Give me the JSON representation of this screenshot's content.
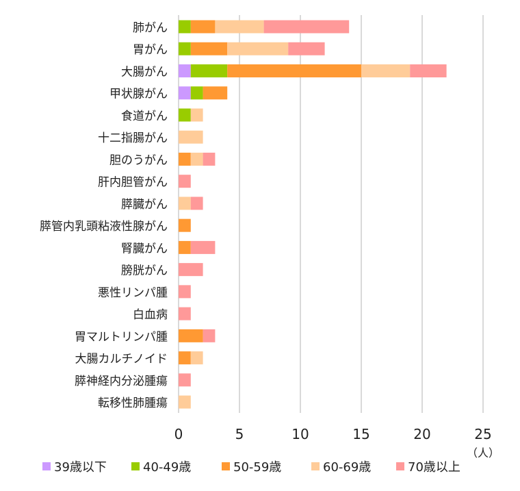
{
  "chart_data": {
    "type": "bar",
    "orientation": "horizontal",
    "stacked": true,
    "title": "",
    "xlabel": "",
    "unit_label": "（人）",
    "xlim": [
      0,
      25
    ],
    "xticks": [
      0,
      5,
      10,
      15,
      20,
      25
    ],
    "grid": true,
    "legend_position": "bottom",
    "categories": [
      "肺がん",
      "胃がん",
      "大腸がん",
      "甲状腺がん",
      "食道がん",
      "十二指腸がん",
      "胆のうがん",
      "肝内胆管がん",
      "膵臓がん",
      "膵管内乳頭粘液性腺がん",
      "腎臓がん",
      "膀胱がん",
      "悪性リンパ腫",
      "白血病",
      "胃マルトリンパ腫",
      "大腸カルチノイド",
      "膵神経内分泌腫瘍",
      "転移性肺腫瘍"
    ],
    "series": [
      {
        "name": "39歳以下",
        "color": "#cc99ff",
        "values": [
          0,
          0,
          1,
          1,
          0,
          0,
          0,
          0,
          0,
          0,
          0,
          0,
          0,
          0,
          0,
          0,
          0,
          0
        ]
      },
      {
        "name": "40-49歳",
        "color": "#99cc00",
        "values": [
          1,
          1,
          3,
          1,
          1,
          0,
          0,
          0,
          0,
          0,
          0,
          0,
          0,
          0,
          0,
          0,
          0,
          0
        ]
      },
      {
        "name": "50-59歳",
        "color": "#ff9933",
        "values": [
          2,
          3,
          11,
          2,
          0,
          0,
          1,
          0,
          0,
          1,
          1,
          0,
          0,
          0,
          2,
          1,
          0,
          0
        ]
      },
      {
        "name": "60-69歳",
        "color": "#ffcc99",
        "values": [
          4,
          5,
          4,
          0,
          1,
          2,
          1,
          0,
          1,
          0,
          0,
          0,
          0,
          0,
          0,
          1,
          0,
          1
        ]
      },
      {
        "name": "70歳以上",
        "color": "#ff9999",
        "values": [
          7,
          3,
          3,
          0,
          0,
          0,
          1,
          1,
          1,
          0,
          2,
          2,
          1,
          1,
          1,
          0,
          1,
          0
        ]
      }
    ]
  }
}
